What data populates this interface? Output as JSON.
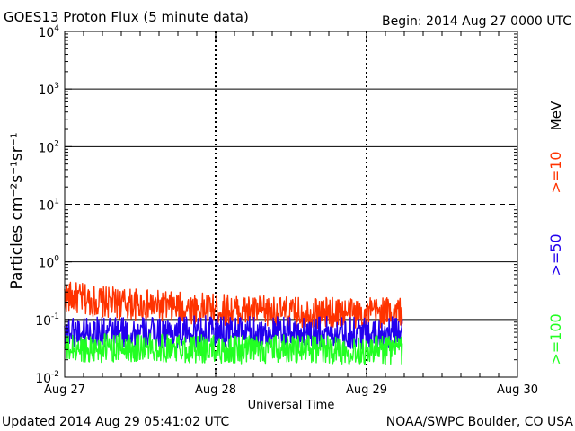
{
  "title": "GOES13 Proton Flux (5 minute data)",
  "begin_label": "Begin: 2014 Aug 27 0000 UTC",
  "updated_label": "Updated 2014 Aug 29 05:41:02 UTC",
  "credit_label": "NOAA/SWPC Boulder, CO USA",
  "colors": {
    "ge10": "#ff3300",
    "ge50": "#2200ee",
    "ge100": "#22ff22",
    "axis": "#000000"
  },
  "chart_data": {
    "type": "line",
    "title": "GOES13 Proton Flux (5 minute data)",
    "xlabel": "Universal Time",
    "ylabel": "Particles cm⁻²s⁻¹sr⁻¹",
    "y_scale": "log",
    "ylim": [
      0.01,
      10000
    ],
    "y_ticks": [
      {
        "value": 0.01,
        "base": "10",
        "exp": "-2"
      },
      {
        "value": 0.1,
        "base": "10",
        "exp": "-1"
      },
      {
        "value": 1,
        "base": "10",
        "exp": "0"
      },
      {
        "value": 10,
        "base": "10",
        "exp": "1"
      },
      {
        "value": 100,
        "base": "10",
        "exp": "2"
      },
      {
        "value": 1000,
        "base": "10",
        "exp": "3"
      },
      {
        "value": 10000,
        "base": "10",
        "exp": "4"
      }
    ],
    "reference_lines": [
      {
        "value": 10,
        "style": "dashed"
      }
    ],
    "x_ticks": [
      "Aug 27",
      "Aug 28",
      "Aug 29",
      "Aug 30"
    ],
    "x_range_days": [
      0,
      3
    ],
    "data_end_day": 2.2375,
    "grid": true,
    "legend_placement": "right",
    "legend": {
      "unit": "MeV",
      "entries": [
        {
          "label": ">=10",
          "color": "#ff3300"
        },
        {
          "label": ">=50",
          "color": "#2200ee"
        },
        {
          "label": ">=100",
          "color": "#22ff22"
        }
      ]
    },
    "series": [
      {
        "name": ">=10",
        "color": "#ff3300",
        "x": [
          0,
          0.25,
          0.5,
          0.75,
          1.0,
          1.25,
          1.5,
          1.75,
          2.0,
          2.2375
        ],
        "values": [
          0.25,
          0.2,
          0.18,
          0.16,
          0.15,
          0.14,
          0.13,
          0.13,
          0.13,
          0.14
        ]
      },
      {
        "name": ">=50",
        "color": "#2200ee",
        "x": [
          0,
          0.25,
          0.5,
          0.75,
          1.0,
          1.25,
          1.5,
          1.75,
          2.0,
          2.2375
        ],
        "values": [
          0.065,
          0.06,
          0.058,
          0.06,
          0.062,
          0.06,
          0.058,
          0.06,
          0.058,
          0.06
        ]
      },
      {
        "name": ">=100",
        "color": "#22ff22",
        "x": [
          0,
          0.25,
          0.5,
          0.75,
          1.0,
          1.25,
          1.5,
          1.75,
          2.0,
          2.2375
        ],
        "values": [
          0.03,
          0.032,
          0.033,
          0.032,
          0.03,
          0.03,
          0.031,
          0.03,
          0.029,
          0.03
        ]
      }
    ]
  }
}
